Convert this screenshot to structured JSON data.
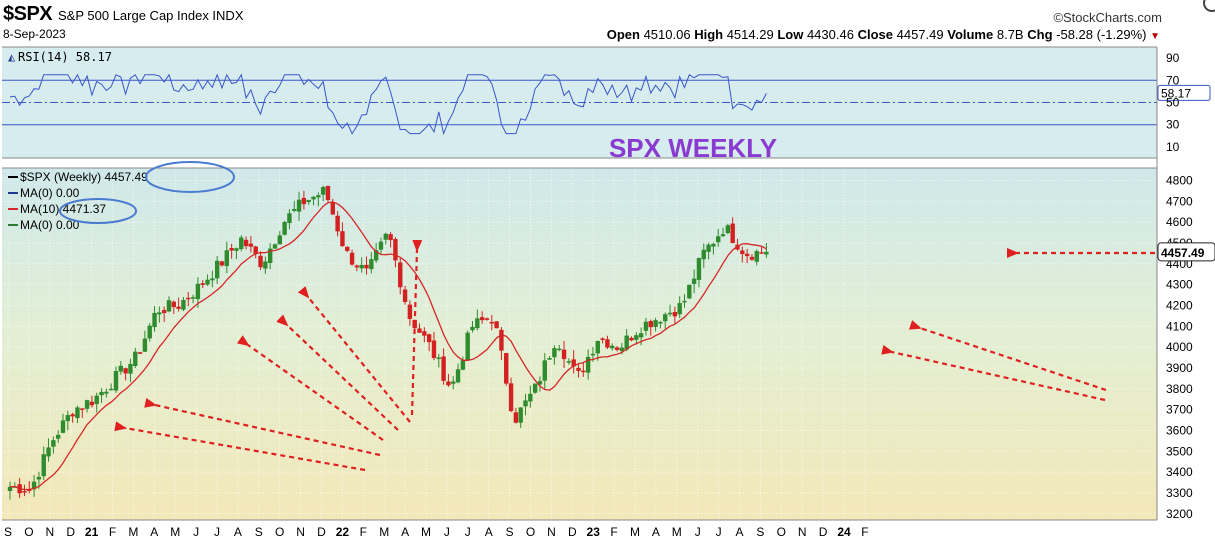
{
  "header": {
    "symbol": "$SPX",
    "description": "S&P 500 Large Cap Index  INDX",
    "date": "8-Sep-2023",
    "source": "©StockCharts.com",
    "open_label": "Open",
    "open": "4510.06",
    "high_label": "High",
    "high": "4514.29",
    "low_label": "Low",
    "low": "4430.46",
    "close_label": "Close",
    "close": "4457.49",
    "volume_label": "Volume",
    "volume": "8.7B",
    "chg_label": "Chg",
    "chg": "-58.28 (-1.29%)",
    "chg_arrow": "▼"
  },
  "rsi_panel": {
    "label": "RSI(14) 58.17",
    "current": "58.17",
    "ticks": [
      "90",
      "70",
      "50",
      "30",
      "10"
    ]
  },
  "price_panel": {
    "annotation": "SPX WEEKLY",
    "legend": [
      {
        "text": "$SPX (Weekly)",
        "value": "4457.49",
        "color": "#000000"
      },
      {
        "text": "MA(0) 0.00",
        "value": "",
        "color": "#1f3a93"
      },
      {
        "text": "MA(10) 4471.37",
        "value": "",
        "color": "#d62728"
      },
      {
        "text": "MA(0) 0.00",
        "value": "",
        "color": "#2e7d32"
      }
    ],
    "last_price_label": "4457.49",
    "colors": {
      "up": "#2e8b2e",
      "down": "#d32020",
      "ma": "#d62728",
      "rsi": "#3a56c9",
      "arrow": "#e02020",
      "title": "#8a3ad0"
    }
  },
  "x_axis": {
    "labels": [
      "S",
      "O",
      "N",
      "D",
      "21",
      "F",
      "M",
      "A",
      "M",
      "J",
      "J",
      "A",
      "S",
      "O",
      "N",
      "D",
      "22",
      "F",
      "M",
      "A",
      "M",
      "J",
      "J",
      "A",
      "S",
      "O",
      "N",
      "D",
      "23",
      "F",
      "M",
      "A",
      "M",
      "J",
      "J",
      "A",
      "S",
      "O",
      "N",
      "D",
      "24",
      "F"
    ]
  },
  "chart_data": {
    "type": "candlestick",
    "title": "SPX WEEKLY",
    "symbol": "$SPX",
    "timeframe": "Weekly",
    "ylim": [
      3170,
      4860
    ],
    "yticks": [
      3200,
      3300,
      3400,
      3500,
      3600,
      3700,
      3800,
      3900,
      4000,
      4100,
      4200,
      4300,
      4400,
      4500,
      4600,
      4700,
      4800
    ],
    "rsi_ylim": [
      0,
      100
    ],
    "approx_close_path": [
      [
        "2020-09",
        3330
      ],
      [
        "2020-10",
        3320
      ],
      [
        "2020-11",
        3550
      ],
      [
        "2020-12",
        3700
      ],
      [
        "2021-01",
        3750
      ],
      [
        "2021-02",
        3850
      ],
      [
        "2021-03",
        3950
      ],
      [
        "2021-04",
        4180
      ],
      [
        "2021-05",
        4200
      ],
      [
        "2021-06",
        4290
      ],
      [
        "2021-07",
        4400
      ],
      [
        "2021-08",
        4520
      ],
      [
        "2021-09",
        4400
      ],
      [
        "2021-10",
        4600
      ],
      [
        "2021-11",
        4700
      ],
      [
        "2021-12",
        4750
      ],
      [
        "2022-01",
        4450
      ],
      [
        "2022-02",
        4350
      ],
      [
        "2022-03",
        4550
      ],
      [
        "2022-04",
        4150
      ],
      [
        "2022-05",
        4000
      ],
      [
        "2022-06",
        3800
      ],
      [
        "2022-07",
        4100
      ],
      [
        "2022-08",
        4150
      ],
      [
        "2022-09",
        3650
      ],
      [
        "2022-10",
        3800
      ],
      [
        "2022-11",
        4050
      ],
      [
        "2022-12",
        3850
      ],
      [
        "2023-01",
        4050
      ],
      [
        "2023-02",
        4000
      ],
      [
        "2023-03",
        4100
      ],
      [
        "2023-04",
        4150
      ],
      [
        "2023-05",
        4200
      ],
      [
        "2023-06",
        4450
      ],
      [
        "2023-07",
        4580
      ],
      [
        "2023-08",
        4450
      ],
      [
        "2023-09",
        4457.49
      ]
    ],
    "last_close": 4457.49,
    "ma10_last": 4471.37,
    "rsi_last": 58.17
  }
}
